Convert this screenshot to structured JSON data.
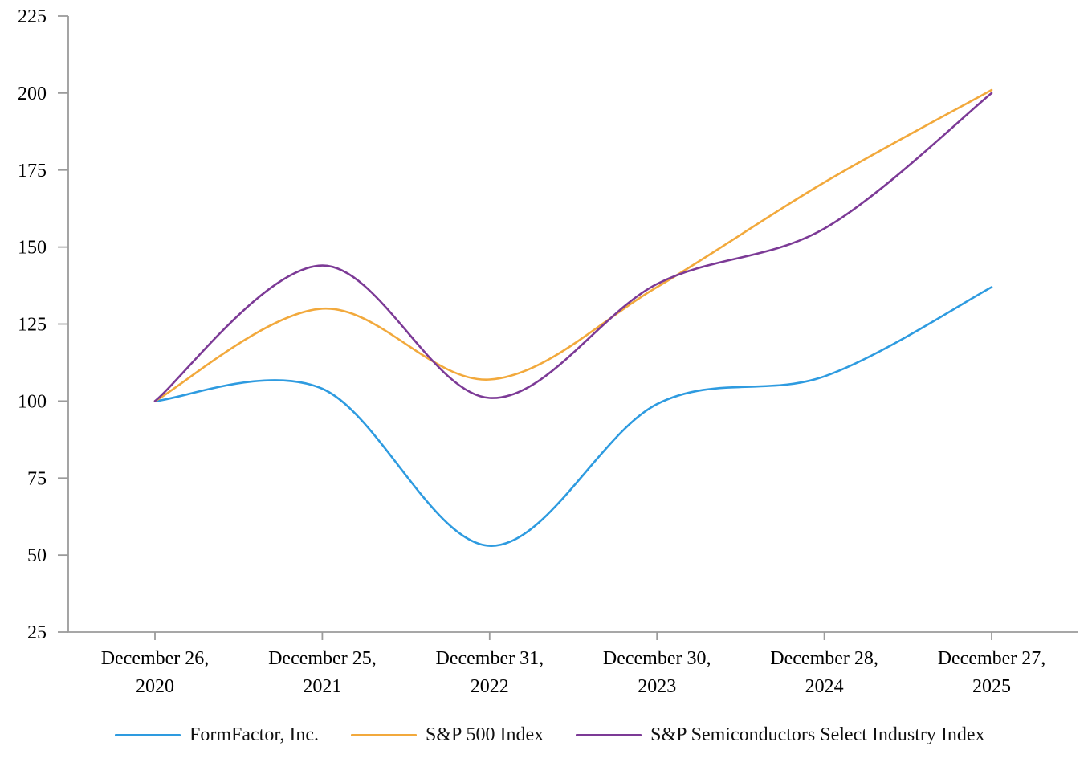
{
  "chart_data": {
    "type": "line",
    "smoothed": true,
    "categories": [
      "December 26, 2020",
      "December 25, 2021",
      "December 31, 2022",
      "December 30, 2023",
      "December 28, 2024",
      "December 27, 2025"
    ],
    "x_labels": [
      {
        "line1": "December 26,",
        "line2": "2020"
      },
      {
        "line1": "December 25,",
        "line2": "2021"
      },
      {
        "line1": "December 31,",
        "line2": "2022"
      },
      {
        "line1": "December 30,",
        "line2": "2023"
      },
      {
        "line1": "December 28,",
        "line2": "2024"
      },
      {
        "line1": "December 27,",
        "line2": "2025"
      }
    ],
    "series": [
      {
        "name": "FormFactor, Inc.",
        "color": "#2E9BE0",
        "values": [
          100,
          104,
          53,
          99,
          108,
          137
        ]
      },
      {
        "name": "S&P 500 Index",
        "color": "#F2A93C",
        "values": [
          100,
          130,
          107,
          137,
          171,
          201
        ]
      },
      {
        "name": "S&P Semiconductors Select Industry Index",
        "color": "#7C3A96",
        "values": [
          100,
          144,
          101,
          138,
          156,
          200
        ]
      }
    ],
    "title": "",
    "xlabel": "",
    "ylabel": "",
    "ylim": [
      25,
      225
    ],
    "y_ticks": [
      25,
      50,
      75,
      100,
      125,
      150,
      175,
      200,
      225
    ],
    "grid": false,
    "legend_position": "bottom"
  },
  "colors": {
    "axis": "#9B9B9B",
    "text": "#000000",
    "background": "#FFFFFF"
  }
}
